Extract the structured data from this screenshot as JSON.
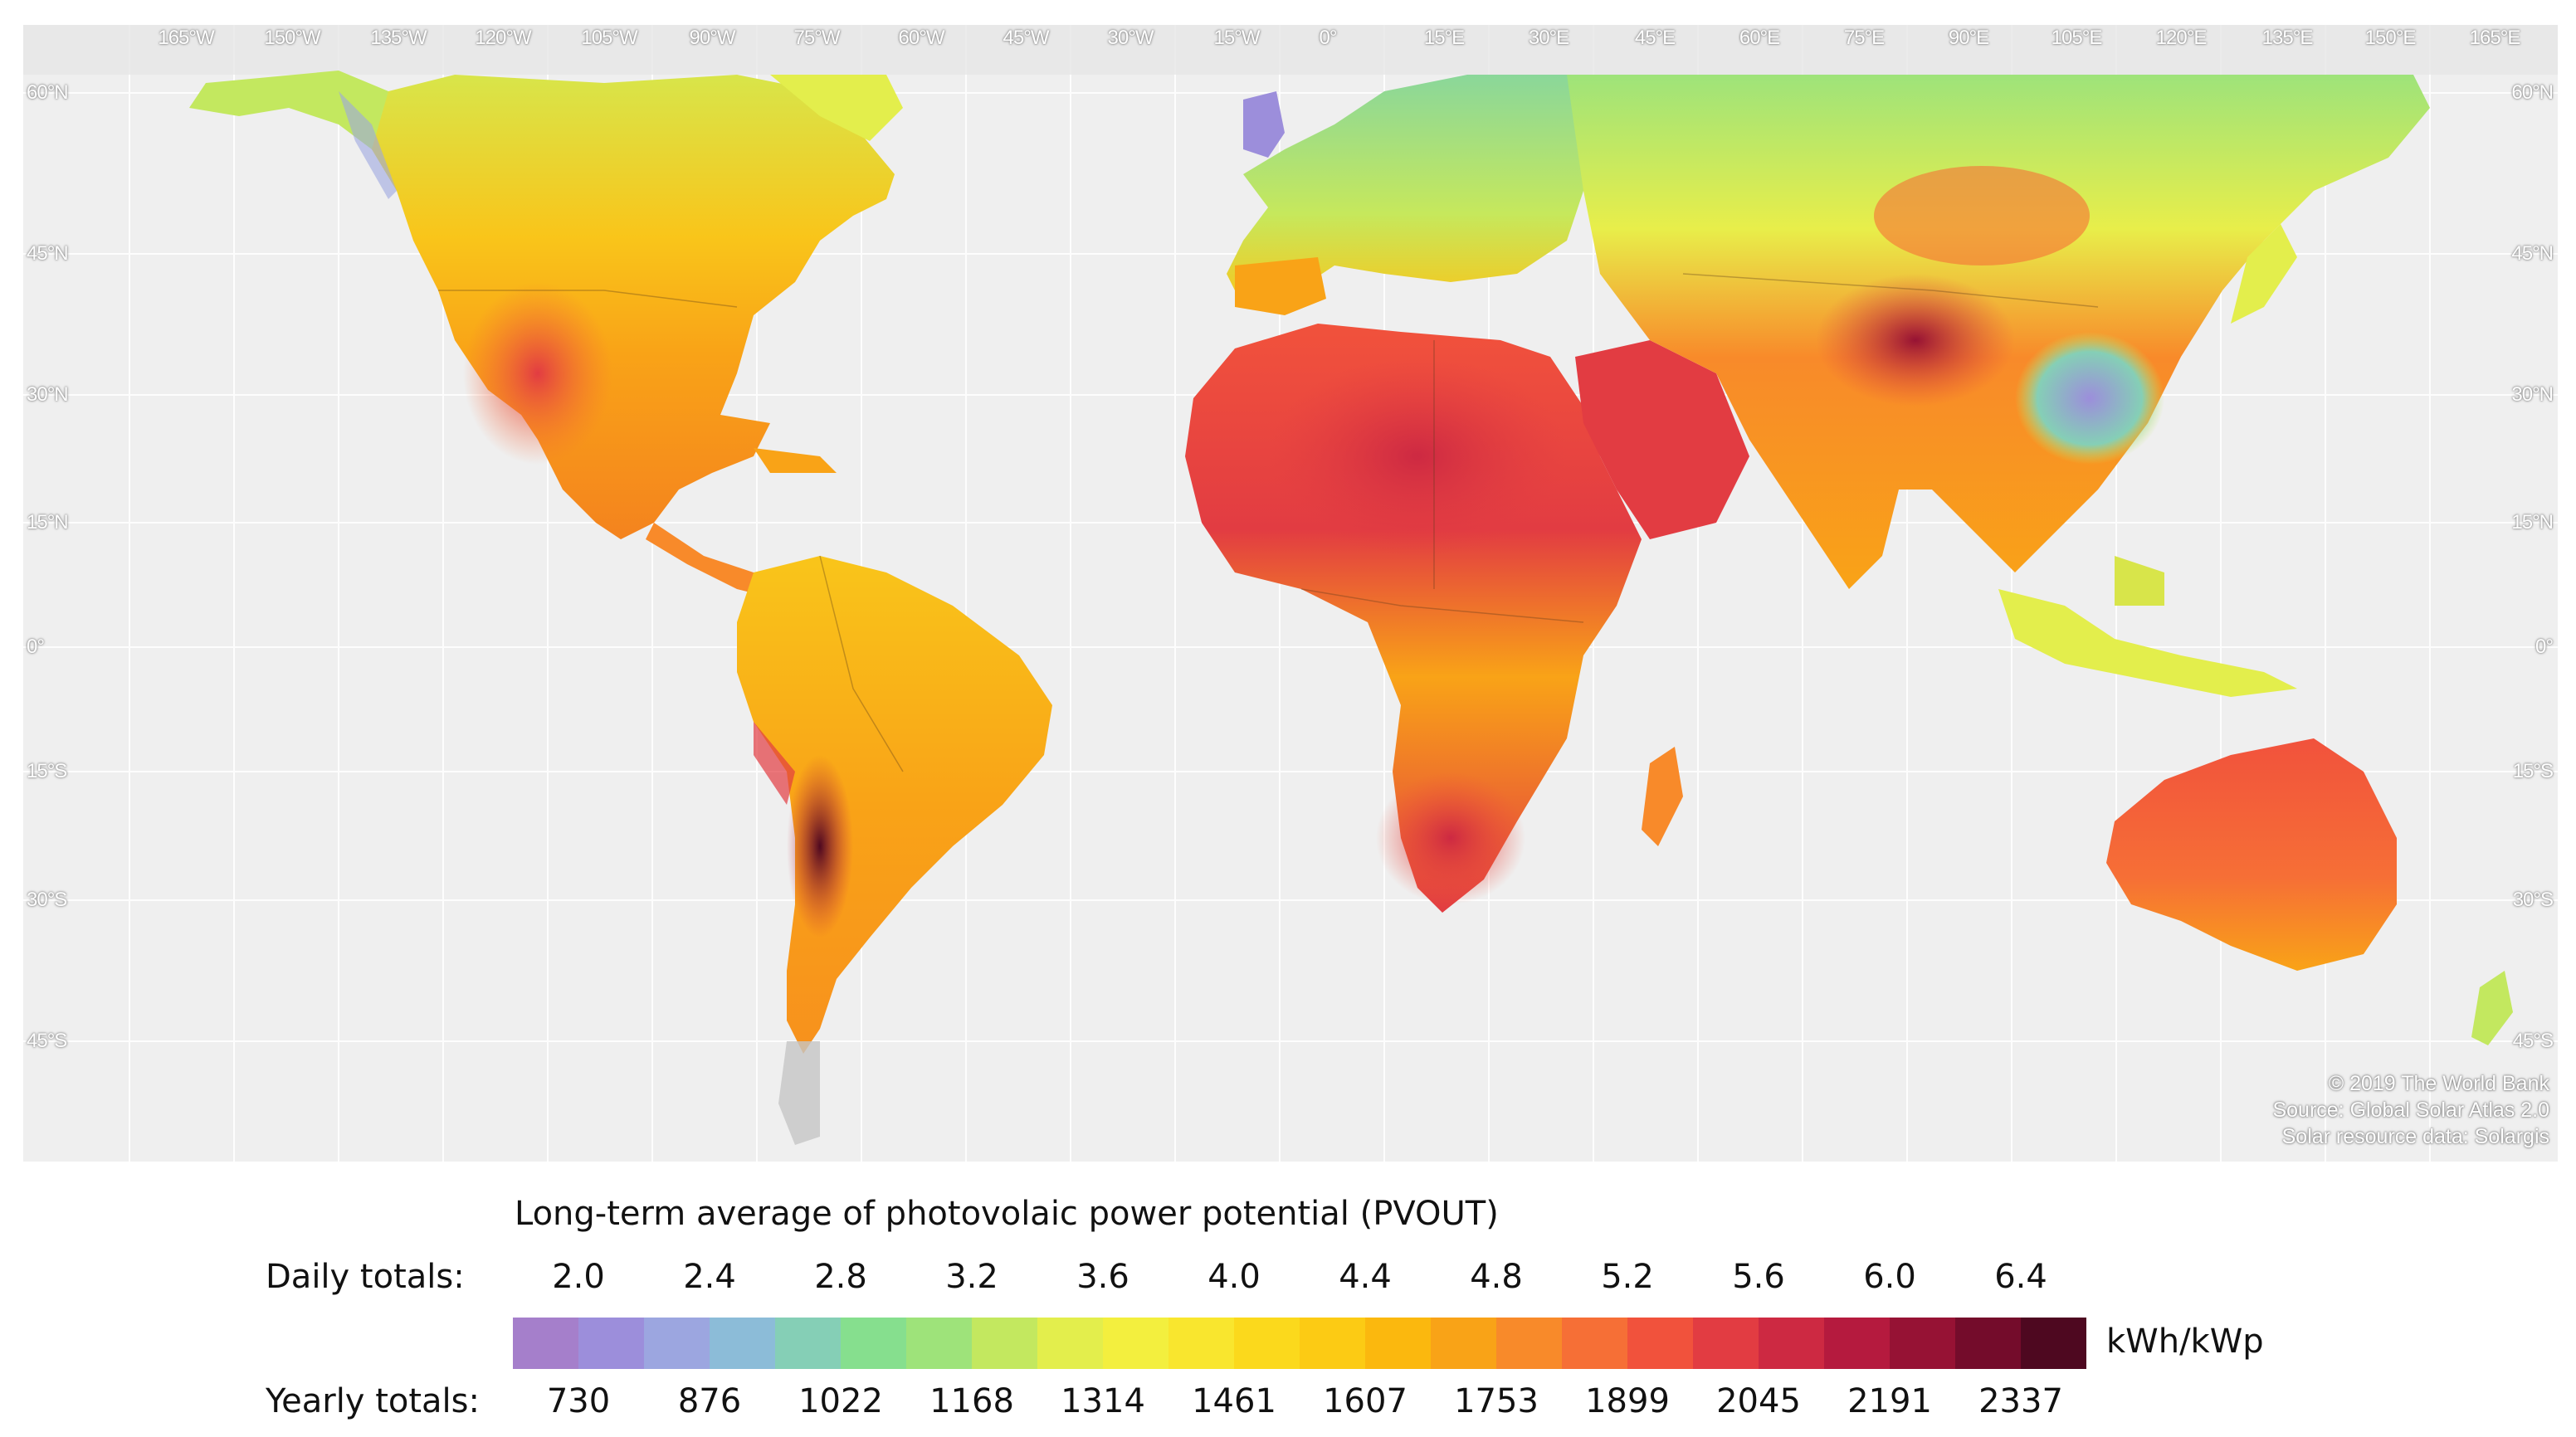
{
  "map": {
    "longitude_labels": [
      "165°W",
      "150°W",
      "135°W",
      "120°W",
      "105°W",
      "90°W",
      "75°W",
      "60°W",
      "45°W",
      "30°W",
      "15°W",
      "0°",
      "15°E",
      "30°E",
      "45°E",
      "60°E",
      "75°E",
      "90°E",
      "105°E",
      "120°E",
      "135°E",
      "150°E",
      "165°E"
    ],
    "latitude_labels": [
      "60°N",
      "45°N",
      "30°N",
      "15°N",
      "0°",
      "15°S",
      "30°S",
      "45°S"
    ],
    "credits": [
      "© 2019 The World Bank",
      "Source: Global Solar Atlas 2.0",
      "Solar resource data: Solargis"
    ]
  },
  "legend": {
    "title": "Long-term average of photovolaic power potential (PVOUT)",
    "daily_label": "Daily totals:",
    "yearly_label": "Yearly totals:",
    "unit": "kWh/kWp",
    "daily_values": [
      "2.0",
      "2.4",
      "2.8",
      "3.2",
      "3.6",
      "4.0",
      "4.4",
      "4.8",
      "5.2",
      "5.6",
      "6.0",
      "6.4"
    ],
    "yearly_values": [
      "730",
      "876",
      "1022",
      "1168",
      "1314",
      "1461",
      "1607",
      "1753",
      "1899",
      "2045",
      "2191",
      "2337"
    ],
    "colors": [
      "#a57fcb",
      "#9c8edb",
      "#9ca6e0",
      "#8cbcd8",
      "#85cfb6",
      "#86df8e",
      "#9ee37a",
      "#c3e85f",
      "#e3ee4c",
      "#f3ef3e",
      "#f9e62e",
      "#fbd91c",
      "#fccb14",
      "#fbb80e",
      "#f9a317",
      "#f88a2a",
      "#f66f36",
      "#f1523c",
      "#e23c42",
      "#cd2942",
      "#b51a3e",
      "#961234",
      "#740c2b",
      "#4e0820"
    ]
  }
}
